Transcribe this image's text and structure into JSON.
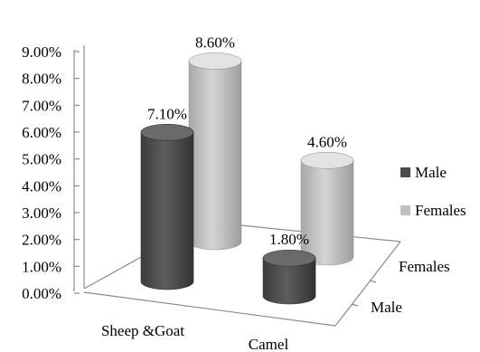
{
  "chart_data": {
    "type": "bar",
    "style": "3d-cylinder",
    "categories": [
      "Sheep &Goat",
      "Camel"
    ],
    "depth_categories": [
      "Male",
      "Females"
    ],
    "series": [
      {
        "name": "Male",
        "values": [
          7.1,
          1.8
        ],
        "labels": [
          "7.10%",
          "1.80%"
        ]
      },
      {
        "name": "Females",
        "values": [
          8.6,
          4.6
        ],
        "labels": [
          "8.60%",
          "4.60%"
        ]
      }
    ],
    "ylim": [
      0,
      9
    ],
    "yticks": [
      0,
      1,
      2,
      3,
      4,
      5,
      6,
      7,
      8,
      9
    ],
    "ytick_labels": [
      "0.00%",
      "1.00%",
      "2.00%",
      "3.00%",
      "4.00%",
      "5.00%",
      "6.00%",
      "7.00%",
      "8.00%",
      "9.00%"
    ],
    "grid": false,
    "legend_position": "right",
    "colors": {
      "Male": "#4d4d4d",
      "Females": "#bfbfbf"
    }
  }
}
